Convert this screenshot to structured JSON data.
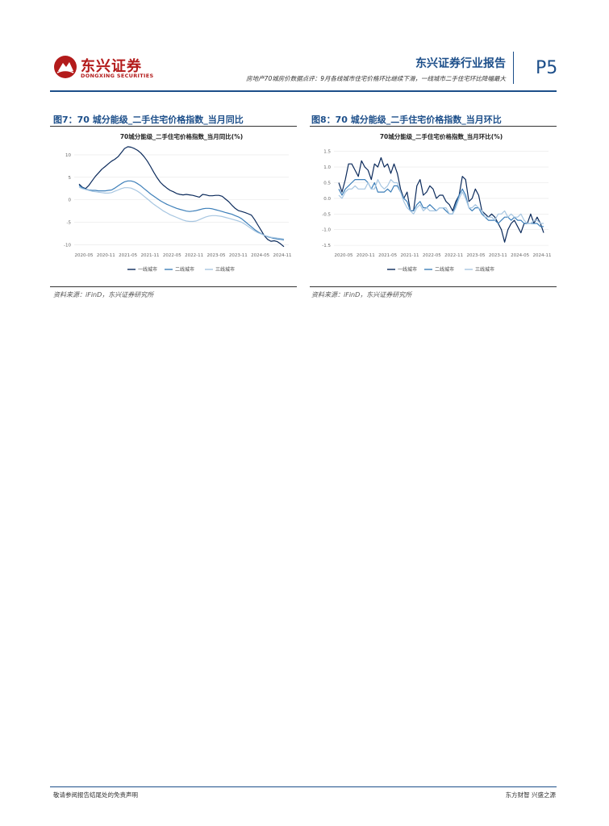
{
  "header": {
    "logo_cn": "东兴证券",
    "logo_en": "DONGXING SECURITIES",
    "report_type": "东兴证券行业报告",
    "subtitle": "房地产70城房价数据点评：9月各线城市住宅价格环比继续下滑，一线城市二手住宅环比降幅最大",
    "page": "P5"
  },
  "figures": [
    {
      "title": "图7：70 城分能级_二手住宅价格指数_当月同比",
      "source": "资料来源：iFinD，东兴证券研究所"
    },
    {
      "title": "图8：70 城分能级_二手住宅价格指数_当月环比",
      "source": "资料来源：iFinD，东兴证券研究所"
    }
  ],
  "chart_data": [
    {
      "type": "line",
      "title": "70城分能级_二手住宅价格指数_当月同比(%)",
      "x_tick_labels": [
        "2020-05",
        "2020-11",
        "2021-05",
        "2021-11",
        "2022-05",
        "2022-11",
        "2023-05",
        "2023-11",
        "2024-05",
        "2024-11"
      ],
      "x_start": "2020-05",
      "y_ticks": [
        10,
        5,
        0,
        -5,
        -10
      ],
      "ylim": [
        -10.8,
        12.5
      ],
      "grid": true,
      "legend_position": "bottom",
      "colors": {
        "tier1": "#0b2a5b",
        "tier2": "#3d7fb9",
        "tier3": "#a7c6e1"
      },
      "series": [
        {
          "name": "一线城市",
          "values": [
            3.5,
            2.8,
            2.5,
            3.2,
            4.2,
            5.2,
            6.0,
            6.8,
            7.4,
            8.0,
            8.6,
            9.0,
            9.6,
            10.5,
            11.4,
            11.8,
            11.7,
            11.4,
            11.0,
            10.4,
            9.6,
            8.6,
            7.4,
            6.1,
            4.9,
            3.9,
            3.2,
            2.6,
            2.1,
            1.8,
            1.4,
            1.2,
            1.1,
            1.2,
            1.1,
            1.0,
            0.8,
            0.6,
            1.2,
            1.1,
            0.9,
            0.9,
            1.0,
            1.0,
            0.8,
            0.2,
            -0.4,
            -1.2,
            -1.9,
            -2.4,
            -2.6,
            -2.8,
            -3.1,
            -3.4,
            -4.4,
            -5.6,
            -6.8,
            -8.0,
            -8.8,
            -9.2,
            -9.1,
            -9.3,
            -9.8,
            -10.4
          ]
        },
        {
          "name": "二线城市",
          "values": [
            3.2,
            2.7,
            2.4,
            2.2,
            2.1,
            2.1,
            2.0,
            2.0,
            2.0,
            2.1,
            2.2,
            2.6,
            3.1,
            3.6,
            4.0,
            4.2,
            4.2,
            4.0,
            3.6,
            3.1,
            2.5,
            1.9,
            1.3,
            0.8,
            0.3,
            -0.2,
            -0.6,
            -1.0,
            -1.3,
            -1.6,
            -1.9,
            -2.1,
            -2.3,
            -2.5,
            -2.6,
            -2.5,
            -2.4,
            -2.2,
            -2.0,
            -1.9,
            -1.9,
            -2.0,
            -2.2,
            -2.4,
            -2.6,
            -2.8,
            -3.0,
            -3.2,
            -3.5,
            -3.8,
            -4.2,
            -4.8,
            -5.4,
            -6.0,
            -6.6,
            -7.1,
            -7.5,
            -7.9,
            -8.2,
            -8.4,
            -8.6,
            -8.7,
            -8.8,
            -8.9
          ]
        },
        {
          "name": "三线城市",
          "values": [
            2.8,
            2.5,
            2.3,
            2.1,
            1.9,
            1.8,
            1.7,
            1.6,
            1.5,
            1.5,
            1.6,
            1.9,
            2.2,
            2.5,
            2.7,
            2.7,
            2.6,
            2.3,
            1.9,
            1.4,
            0.8,
            0.2,
            -0.4,
            -1.0,
            -1.5,
            -2.0,
            -2.5,
            -2.9,
            -3.3,
            -3.6,
            -3.9,
            -4.2,
            -4.5,
            -4.7,
            -4.8,
            -4.8,
            -4.7,
            -4.4,
            -4.1,
            -3.8,
            -3.6,
            -3.5,
            -3.5,
            -3.6,
            -3.7,
            -3.9,
            -4.1,
            -4.3,
            -4.5,
            -4.7,
            -5.0,
            -5.4,
            -5.9,
            -6.4,
            -6.9,
            -7.3,
            -7.6,
            -7.9,
            -8.1,
            -8.3,
            -8.4,
            -8.5,
            -8.6,
            -8.7
          ]
        }
      ]
    },
    {
      "type": "line",
      "title": "70城分能级_二手住宅价格指数_当月环比(%)",
      "x_tick_labels": [
        "2020-05",
        "2020-11",
        "2021-05",
        "2021-11",
        "2022-05",
        "2022-11",
        "2023-05",
        "2023-11",
        "2024-05",
        "2024-11"
      ],
      "x_start": "2020-05",
      "y_ticks": [
        1.5,
        1.0,
        0.5,
        0.0,
        -0.5,
        -1.0,
        -1.5
      ],
      "ylim": [
        -1.6,
        1.75
      ],
      "grid": true,
      "legend_position": "bottom",
      "colors": {
        "tier1": "#0b2a5b",
        "tier2": "#3d7fb9",
        "tier3": "#a7c6e1"
      },
      "series": [
        {
          "name": "一线城市",
          "values": [
            0.5,
            0.2,
            0.6,
            1.1,
            1.1,
            0.9,
            0.7,
            1.2,
            1.0,
            0.9,
            0.6,
            1.1,
            1.0,
            1.3,
            1.0,
            1.1,
            0.8,
            1.1,
            0.8,
            0.3,
            0.0,
            0.2,
            -0.4,
            -0.4,
            0.4,
            0.6,
            0.1,
            0.2,
            0.4,
            0.3,
            0.0,
            0.1,
            0.1,
            -0.1,
            -0.2,
            -0.4,
            -0.1,
            0.1,
            0.7,
            0.6,
            -0.1,
            0.0,
            0.3,
            0.1,
            -0.4,
            -0.5,
            -0.6,
            -0.5,
            -0.6,
            -0.8,
            -1.0,
            -1.4,
            -1.0,
            -0.8,
            -0.7,
            -0.9,
            -1.1,
            -0.8,
            -0.8,
            -0.5,
            -0.8,
            -0.6,
            -0.8,
            -1.1
          ]
        },
        {
          "name": "二线城市",
          "values": [
            0.3,
            0.1,
            0.3,
            0.4,
            0.5,
            0.6,
            0.6,
            0.6,
            0.6,
            0.5,
            0.3,
            0.5,
            0.2,
            0.2,
            0.2,
            0.3,
            0.2,
            0.4,
            0.4,
            0.2,
            0.0,
            -0.1,
            -0.4,
            -0.4,
            -0.2,
            -0.1,
            -0.3,
            -0.3,
            -0.2,
            -0.3,
            -0.4,
            -0.3,
            -0.3,
            -0.4,
            -0.5,
            -0.5,
            -0.2,
            0.1,
            0.3,
            0.1,
            -0.3,
            -0.4,
            -0.3,
            -0.3,
            -0.5,
            -0.6,
            -0.7,
            -0.7,
            -0.7,
            -0.8,
            -0.7,
            -0.6,
            -0.6,
            -0.7,
            -0.6,
            -0.7,
            -0.7,
            -0.8,
            -0.8,
            -0.8,
            -0.8,
            -0.8,
            -0.9,
            -0.9
          ]
        },
        {
          "name": "三线城市",
          "values": [
            0.1,
            0.0,
            0.2,
            0.3,
            0.3,
            0.4,
            0.3,
            0.3,
            0.3,
            0.5,
            0.3,
            0.3,
            0.6,
            0.4,
            0.3,
            0.4,
            0.6,
            0.5,
            0.5,
            0.2,
            -0.1,
            -0.3,
            -0.4,
            -0.5,
            -0.3,
            -0.2,
            -0.4,
            -0.3,
            -0.4,
            -0.4,
            -0.4,
            -0.3,
            -0.3,
            -0.3,
            -0.5,
            -0.5,
            -0.3,
            0.0,
            0.2,
            0.0,
            -0.3,
            -0.3,
            -0.2,
            -0.3,
            -0.4,
            -0.6,
            -0.6,
            -0.6,
            -0.7,
            -0.5,
            -0.5,
            -0.4,
            -0.6,
            -0.5,
            -0.6,
            -0.6,
            -0.5,
            -0.7,
            -0.8,
            -0.8,
            -0.7,
            -0.7,
            -0.8,
            -0.8
          ]
        }
      ]
    }
  ],
  "footer": {
    "left": "敬请参阅报告结尾处的免责声明",
    "right": "东方财智 兴盛之源"
  }
}
